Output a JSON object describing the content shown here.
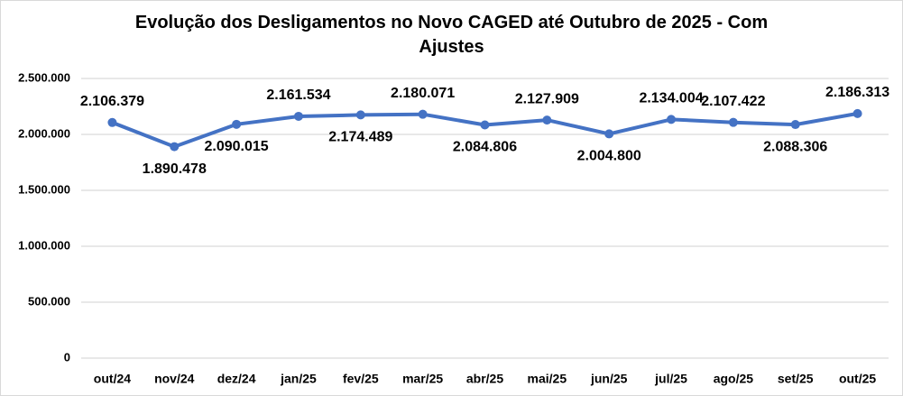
{
  "window": {
    "background": "#ffffff",
    "frame_border_color": "#d9d9d9"
  },
  "chart_data": {
    "type": "line",
    "title": "Evolução dos Desligamentos no Novo CAGED até Outubro de 2025 - Com Ajustes",
    "title_lines": [
      "Evolução dos Desligamentos no Novo CAGED até Outubro de 2025 - Com",
      "Ajustes"
    ],
    "categories": [
      "out/24",
      "nov/24",
      "dez/24",
      "jan/25",
      "fev/25",
      "mar/25",
      "abr/25",
      "mai/25",
      "jun/25",
      "jul/25",
      "ago/25",
      "set/25",
      "out/25"
    ],
    "values": [
      2106379,
      1890478,
      2090015,
      2161534,
      2174489,
      2180071,
      2084806,
      2127909,
      2004800,
      2134004,
      2107422,
      2088306,
      2186313
    ],
    "data_labels": [
      "2.106.379",
      "1.890.478",
      "2.090.015",
      "2.161.534",
      "2.174.489",
      "2.180.071",
      "2.084.806",
      "2.127.909",
      "2.004.800",
      "2.134.004",
      "2.107.422",
      "2.088.306",
      "2.186.313"
    ],
    "label_positions": [
      "above",
      "below",
      "below",
      "above",
      "below",
      "above",
      "below",
      "above",
      "below",
      "above",
      "above",
      "below",
      "above"
    ],
    "xlabel": "",
    "ylabel": "",
    "y_axis": {
      "min": 0,
      "max": 2500000,
      "tick_interval": 500000,
      "tick_values": [
        0,
        500000,
        1000000,
        1500000,
        2000000,
        2500000
      ],
      "tick_labels": [
        "0",
        "500.000",
        "1.000.000",
        "1.500.000",
        "2.000.000",
        "2.500.000"
      ]
    },
    "grid": true,
    "legend_position": "none",
    "line_color": "#4472c4",
    "marker_color": "#4472c4",
    "gridline_color": "#d9d9d9",
    "label_color": "#000000"
  }
}
